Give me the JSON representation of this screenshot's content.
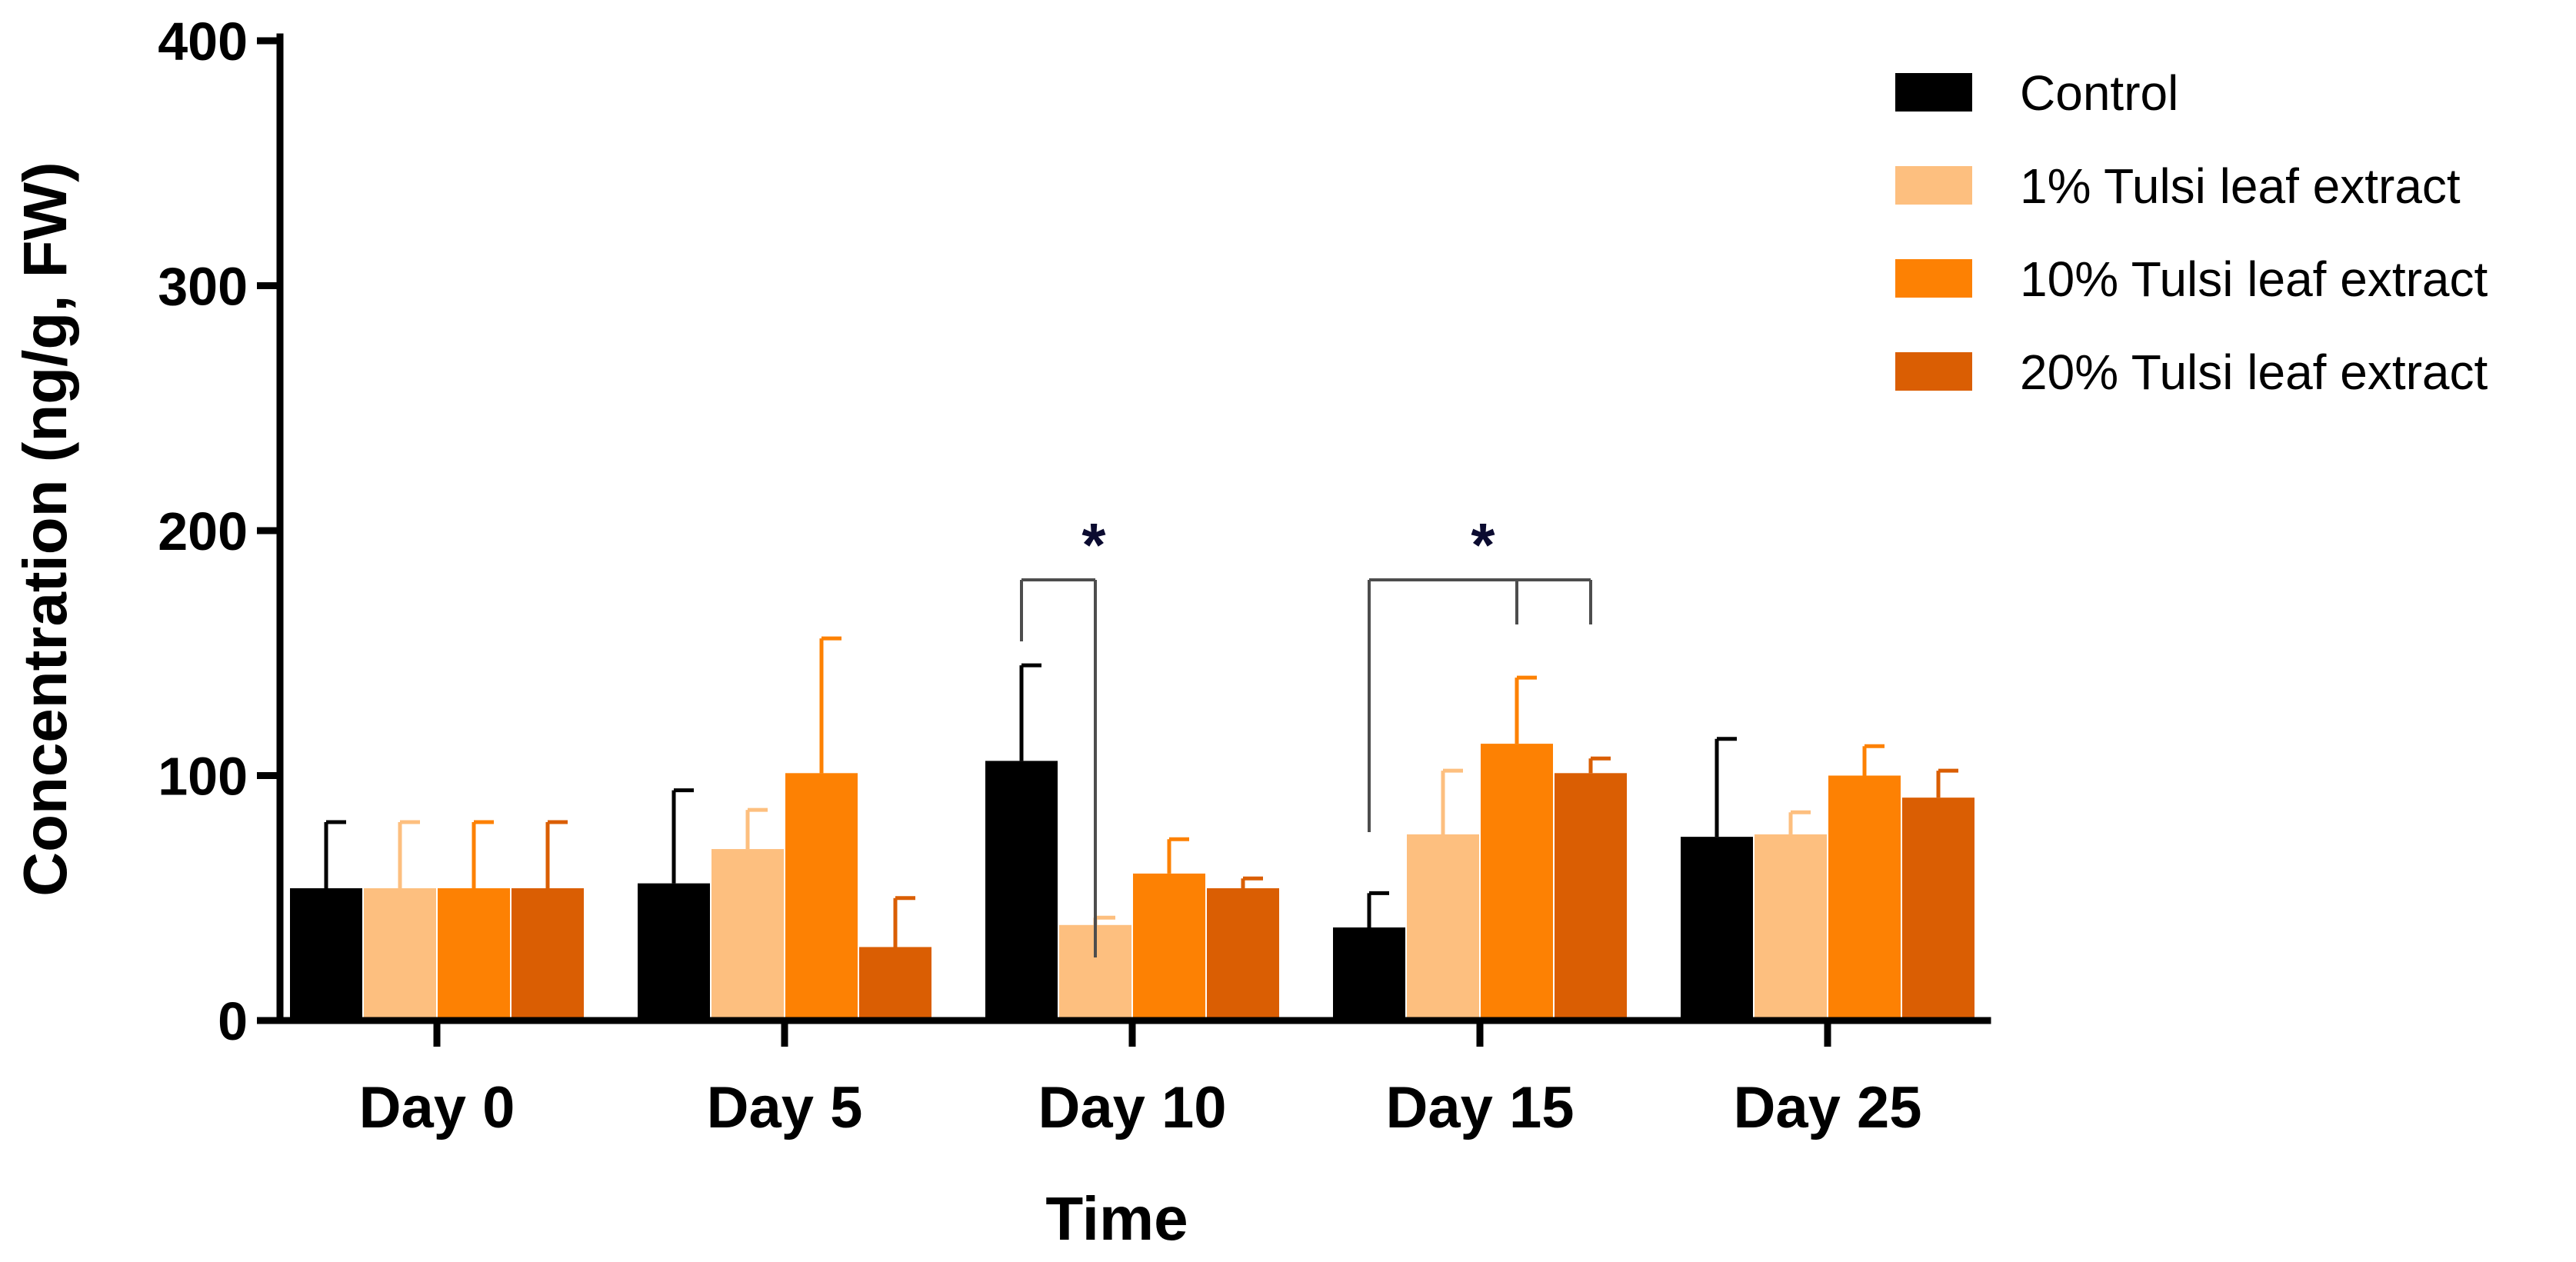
{
  "chart_data": {
    "type": "bar",
    "title": "",
    "xlabel": "Time",
    "ylabel": "Concentration (ng/g, FW)",
    "ylim": [
      0,
      400
    ],
    "yticks": [
      "0",
      "100",
      "200",
      "300",
      "400"
    ],
    "categories": [
      "Day 0",
      "Day 5",
      "Day 10",
      "Day 15",
      "Day 25"
    ],
    "series": [
      {
        "name": "Control",
        "color": "#000000",
        "values": [
          54,
          56,
          106,
          38,
          75
        ],
        "errors": [
          27,
          38,
          39,
          14,
          40
        ]
      },
      {
        "name": "1% Tulsi leaf extract",
        "color": "#fdbf7f",
        "values": [
          54,
          70,
          39,
          76,
          76
        ],
        "errors": [
          27,
          16,
          3,
          26,
          9
        ]
      },
      {
        "name": "10% Tulsi leaf extract",
        "color": "#fd8103",
        "values": [
          54,
          101,
          60,
          113,
          100
        ],
        "errors": [
          27,
          55,
          14,
          27,
          12
        ]
      },
      {
        "name": "20% Tulsi leaf extract",
        "color": "#da5e03",
        "values": [
          54,
          30,
          54,
          101,
          91
        ],
        "errors": [
          27,
          20,
          4,
          6,
          11
        ]
      }
    ],
    "annotations": [
      {
        "text": "*",
        "category": "Day 10",
        "compares": [
          "Control",
          "1% Tulsi leaf extract"
        ]
      },
      {
        "text": "*",
        "category": "Day 15",
        "compares": [
          "Control",
          "10% Tulsi leaf extract",
          "20% Tulsi leaf extract"
        ]
      }
    ],
    "legend_position": "top-right",
    "grid": false
  }
}
